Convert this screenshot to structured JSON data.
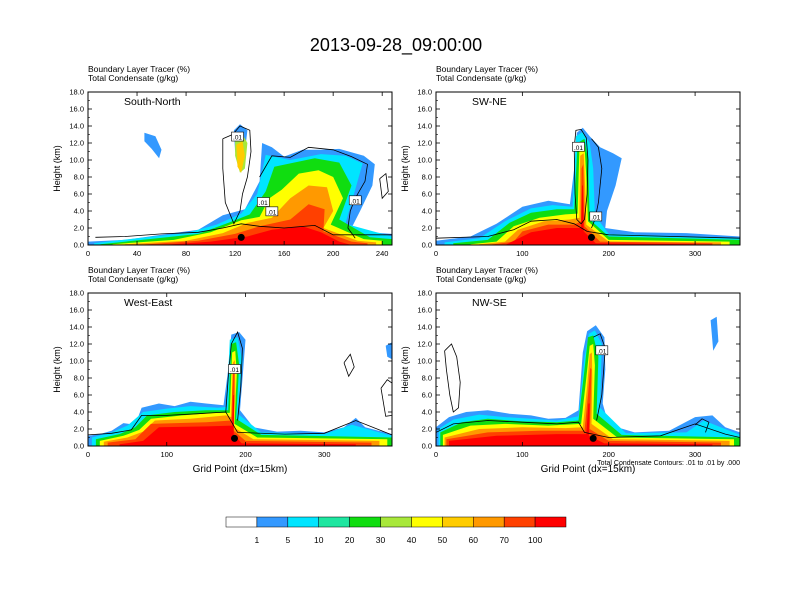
{
  "figure": {
    "title": "2013-09-28_09:00:00"
  },
  "chart_data": [
    {
      "type": "heatmap",
      "panel_label": "South-North",
      "left_string_1": "Boundary Layer Tracer   (%)",
      "left_string_2": "Total Condensate   (g/kg)",
      "ylabel": "Height (km)",
      "xlabel": "",
      "footnote": "",
      "xlim": [
        0,
        248
      ],
      "ylim": [
        0,
        18
      ],
      "xticks": [
        0,
        40,
        80,
        120,
        160,
        200,
        240
      ],
      "yticks": [
        0,
        2,
        4,
        6,
        8,
        10,
        12,
        14,
        16,
        18
      ],
      "ytick_labels": [
        "0.0",
        "2.0",
        "4.0",
        "6.0",
        "8.0",
        "10.0",
        "12.0",
        "14.0",
        "16.0",
        "18.0"
      ],
      "contour_labels": [
        {
          "text": ".01",
          "x": 122,
          "y": 12.7
        },
        {
          "text": ".01",
          "x": 143,
          "y": 5.0
        },
        {
          "text": ".01",
          "x": 150,
          "y": 3.9
        },
        {
          "text": ".01",
          "x": 218,
          "y": 5.2
        }
      ],
      "center_marker": {
        "x": 125,
        "y": 0.9
      }
    },
    {
      "type": "heatmap",
      "panel_label": "SW-NE",
      "left_string_1": "Boundary Layer Tracer   (%)",
      "left_string_2": "Total Condensate   (g/kg)",
      "ylabel": "Height (km)",
      "xlabel": "",
      "footnote": "",
      "xlim": [
        0,
        352
      ],
      "ylim": [
        0,
        18
      ],
      "xticks": [
        0,
        100,
        200,
        300
      ],
      "yticks": [
        0,
        2,
        4,
        6,
        8,
        10,
        12,
        14,
        16,
        18
      ],
      "ytick_labels": [
        "0.0",
        "2.0",
        "4.0",
        "6.0",
        "8.0",
        "10.0",
        "12.0",
        "14.0",
        "16.0",
        "18.0"
      ],
      "contour_labels": [
        {
          "text": ".01",
          "x": 165,
          "y": 11.5
        },
        {
          "text": ".01",
          "x": 185,
          "y": 3.3
        }
      ],
      "center_marker": {
        "x": 180,
        "y": 0.9
      }
    },
    {
      "type": "heatmap",
      "panel_label": "West-East",
      "left_string_1": "Boundary Layer Tracer   (%)",
      "left_string_2": "Total Condensate   (g/kg)",
      "ylabel": "Height (km)",
      "xlabel": "Grid Point (dx=15km)",
      "footnote": "",
      "xlim": [
        0,
        386
      ],
      "ylim": [
        0,
        18
      ],
      "xticks": [
        0,
        100,
        200,
        300
      ],
      "yticks": [
        0,
        2,
        4,
        6,
        8,
        10,
        12,
        14,
        16,
        18
      ],
      "ytick_labels": [
        "0.0",
        "2.0",
        "4.0",
        "6.0",
        "8.0",
        "10.0",
        "12.0",
        "14.0",
        "16.0",
        "18.0"
      ],
      "contour_labels": [
        {
          "text": ".01",
          "x": 186,
          "y": 9.0
        }
      ],
      "center_marker": {
        "x": 186,
        "y": 0.9
      }
    },
    {
      "type": "heatmap",
      "panel_label": "NW-SE",
      "left_string_1": "Boundary Layer Tracer   (%)",
      "left_string_2": "Total Condensate   (g/kg)",
      "ylabel": "Height (km)",
      "xlabel": "Grid Point (dx=15km)",
      "footnote": "Total Condensate Contours: .01 to .01 by .000",
      "xlim": [
        0,
        352
      ],
      "ylim": [
        0,
        18
      ],
      "xticks": [
        0,
        100,
        200,
        300
      ],
      "yticks": [
        0,
        2,
        4,
        6,
        8,
        10,
        12,
        14,
        16,
        18
      ],
      "ytick_labels": [
        "0.0",
        "2.0",
        "4.0",
        "6.0",
        "8.0",
        "10.0",
        "12.0",
        "14.0",
        "16.0",
        "18.0"
      ],
      "contour_labels": [
        {
          "text": ".01",
          "x": 192,
          "y": 11.2
        }
      ],
      "center_marker": {
        "x": 182,
        "y": 0.9
      }
    }
  ],
  "colorbar": {
    "labels": [
      "1",
      "5",
      "10",
      "20",
      "30",
      "40",
      "50",
      "60",
      "70",
      "100"
    ],
    "colors": [
      "#ffffff",
      "#3399ff",
      "#00e5ff",
      "#1ee6a0",
      "#10dd10",
      "#a8e83a",
      "#ffff00",
      "#ffcc00",
      "#ff9900",
      "#ff4000",
      "#ff0000"
    ]
  }
}
